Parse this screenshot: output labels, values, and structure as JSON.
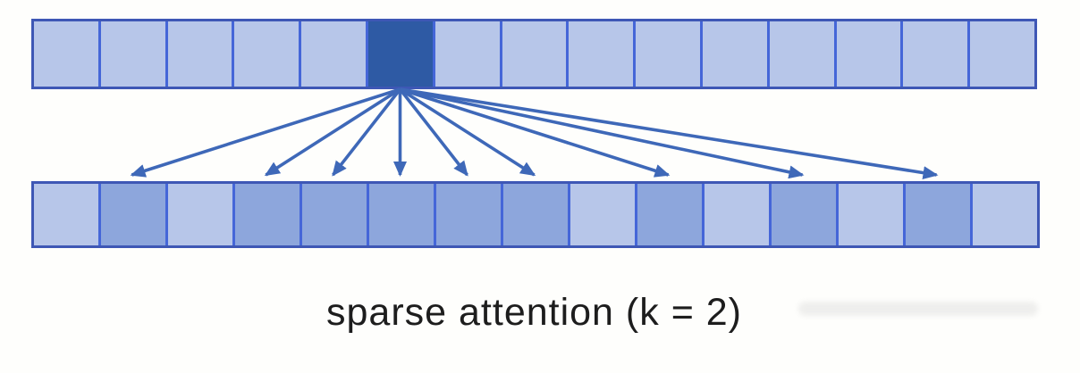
{
  "figure": {
    "caption": "sparse attention (k = 2)",
    "top_row": {
      "num_cells": 15,
      "highlighted_cell_index": 6,
      "cells": [
        "plain",
        "plain",
        "plain",
        "plain",
        "plain",
        "highlighted",
        "plain",
        "plain",
        "plain",
        "plain",
        "plain",
        "plain",
        "plain",
        "plain",
        "plain"
      ]
    },
    "bottom_row": {
      "num_cells": 15,
      "attended_cell_indices": [
        2,
        4,
        5,
        6,
        7,
        8,
        10,
        12,
        14
      ],
      "cells": [
        "plain",
        "attended",
        "plain",
        "attended",
        "attended",
        "attended",
        "attended",
        "attended",
        "plain",
        "attended",
        "plain",
        "attended",
        "plain",
        "attended",
        "plain"
      ]
    },
    "arrows": {
      "count": 9,
      "source_row": "top",
      "source_cell_index": 6,
      "target_row": "bottom",
      "target_cell_indices": [
        2,
        4,
        5,
        6,
        7,
        8,
        10,
        12,
        14
      ]
    },
    "colors": {
      "background": "#fefefc",
      "cell_plain": "#b7c6e9",
      "cell_attended": "#8da6dc",
      "cell_highlighted": "#2e5aa4",
      "border": "#4566d8",
      "outer_border": "#3e57b5",
      "arrow": "#3e68b8",
      "caption": "#1d1d1d"
    }
  }
}
